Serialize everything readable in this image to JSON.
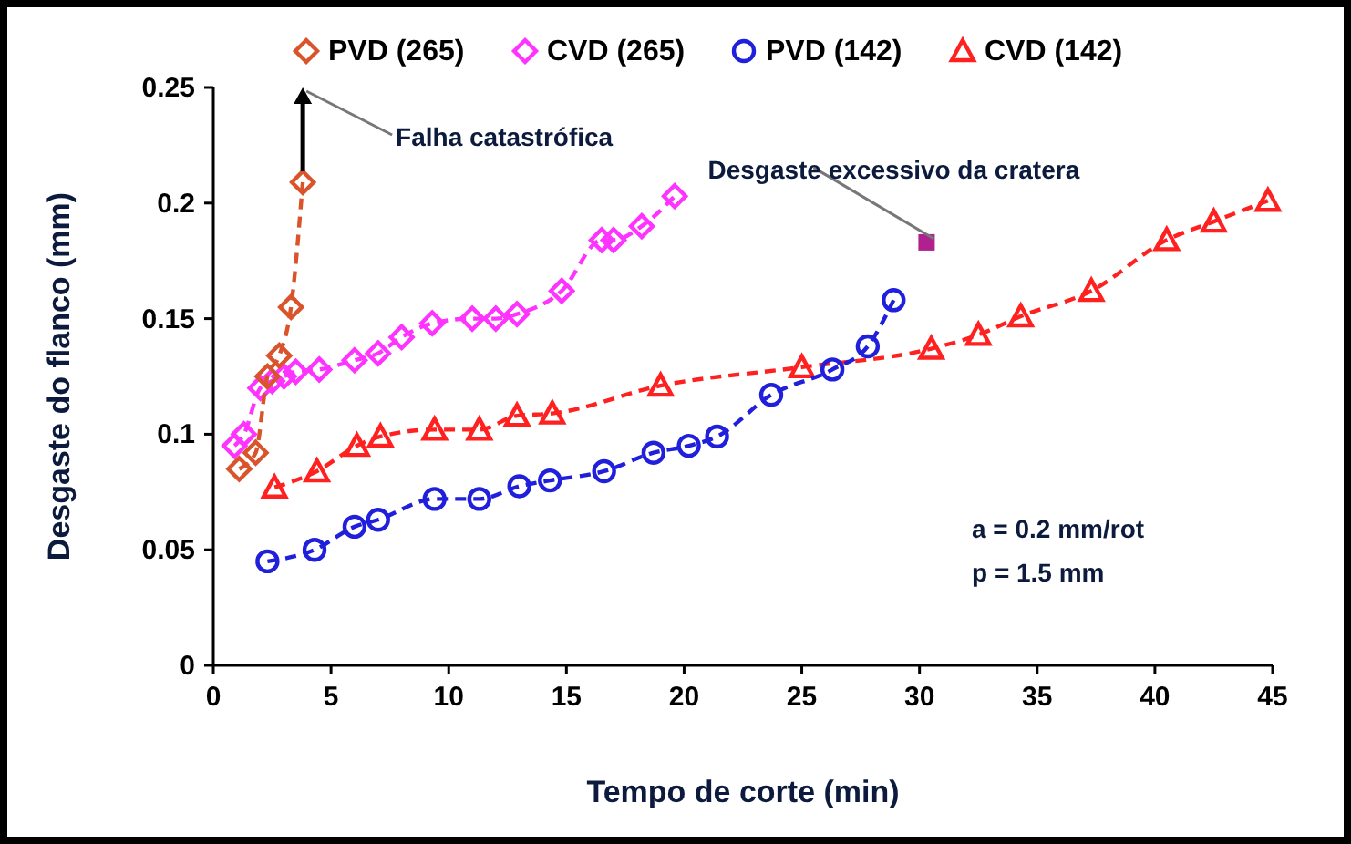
{
  "chart_data": {
    "type": "line",
    "xlabel": "Tempo de corte (min)",
    "ylabel": "Desgaste do flanco (mm)",
    "xlim": [
      0,
      45
    ],
    "xticks": [
      0,
      5,
      10,
      15,
      20,
      25,
      30,
      35,
      40,
      45
    ],
    "ylim": [
      0,
      0.25
    ],
    "yticks": [
      0,
      0.05,
      0.1,
      0.15,
      0.2,
      0.25
    ],
    "legend": "top",
    "line_style": "dashed",
    "grid": false,
    "series": [
      {
        "name": "PVD (265)",
        "color": "#d9542b",
        "marker": "diamond",
        "x": [
          1.1,
          1.8,
          2.3,
          2.8,
          3.3,
          3.8
        ],
        "values": [
          0.085,
          0.092,
          0.125,
          0.134,
          0.155,
          0.209
        ]
      },
      {
        "name": "CVD (265)",
        "color": "#ff33ff",
        "marker": "diamond",
        "x": [
          0.9,
          1.3,
          2.0,
          2.5,
          3.0,
          3.5,
          4.5,
          6.0,
          7.0,
          8.0,
          9.3,
          11.0,
          12.0,
          12.9,
          14.8,
          16.5,
          17.0,
          18.2,
          19.6
        ],
        "values": [
          0.095,
          0.1,
          0.12,
          0.123,
          0.125,
          0.127,
          0.128,
          0.132,
          0.135,
          0.142,
          0.148,
          0.15,
          0.15,
          0.152,
          0.162,
          0.184,
          0.184,
          0.19,
          0.203
        ]
      },
      {
        "name": "PVD (142)",
        "color": "#1f1fdc",
        "marker": "circle",
        "x": [
          2.3,
          4.3,
          6.0,
          7.0,
          9.4,
          11.3,
          13.0,
          14.3,
          16.6,
          18.7,
          20.2,
          21.4,
          23.7,
          26.3,
          27.8,
          28.9
        ],
        "values": [
          0.045,
          0.05,
          0.06,
          0.063,
          0.072,
          0.072,
          0.0775,
          0.08,
          0.084,
          0.092,
          0.095,
          0.099,
          0.117,
          0.128,
          0.138,
          0.158
        ]
      },
      {
        "name": "CVD (142)",
        "color": "#ff2020",
        "marker": "triangle",
        "x": [
          2.6,
          4.4,
          6.1,
          7.1,
          9.4,
          11.3,
          12.9,
          14.4,
          19.0,
          25.0,
          30.5,
          32.5,
          34.3,
          37.3,
          40.5,
          42.5,
          44.8
        ],
        "values": [
          0.077,
          0.084,
          0.095,
          0.099,
          0.102,
          0.102,
          0.108,
          0.109,
          0.121,
          0.129,
          0.137,
          0.143,
          0.151,
          0.162,
          0.184,
          0.192,
          0.201
        ]
      },
      {
        "color": "#b0208e",
        "marker": "square",
        "x": [
          30.3
        ],
        "values": [
          0.183
        ]
      }
    ],
    "annotations": [
      "Falha catastrófica",
      {
        "text": "Desgaste excessivo da cratera",
        "x": 30.3,
        "y": 0.183
      },
      "a = 0.2 mm/rot",
      "p = 1.5 mm"
    ]
  }
}
